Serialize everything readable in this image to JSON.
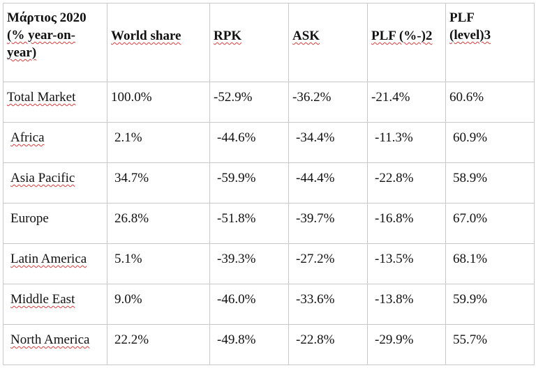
{
  "table": {
    "header": [
      [
        "Μάρτιος 2020",
        "(% year-on-",
        "year)"
      ],
      [
        "World share"
      ],
      [
        "RPK"
      ],
      [
        "ASK"
      ],
      [
        "PLF (%-)2"
      ],
      [
        "PLF",
        "(level)3"
      ]
    ],
    "total": {
      "region": "Total Market",
      "world_share": "100.0%",
      "rpk": "-52.9%",
      "ask": "-36.2%",
      "plf_change": "-21.4%",
      "plf_level": "60.6%"
    },
    "rows": [
      {
        "region": "Africa",
        "world_share": "2.1%",
        "rpk": "-44.6%",
        "ask": "-34.4%",
        "plf_change": "-11.3%",
        "plf_level": "60.9%"
      },
      {
        "region": "Asia Pacific",
        "world_share": "34.7%",
        "rpk": "-59.9%",
        "ask": "-44.4%",
        "plf_change": "-22.8%",
        "plf_level": "58.9%"
      },
      {
        "region": "Europe",
        "world_share": "26.8%",
        "rpk": "-51.8%",
        "ask": "-39.7%",
        "plf_change": "-16.8%",
        "plf_level": "67.0%"
      },
      {
        "region": "Latin America",
        "world_share": "5.1%",
        "rpk": "-39.3%",
        "ask": "-27.2%",
        "plf_change": "-13.5%",
        "plf_level": "68.1%"
      },
      {
        "region": "Middle East",
        "world_share": "9.0%",
        "rpk": "-46.0%",
        "ask": "-33.6%",
        "plf_change": "-13.8%",
        "plf_level": "59.9%"
      },
      {
        "region": "North America",
        "world_share": "22.2%",
        "rpk": "-49.8%",
        "ask": "-22.8%",
        "plf_change": "-29.9%",
        "plf_level": "55.7%"
      }
    ]
  }
}
